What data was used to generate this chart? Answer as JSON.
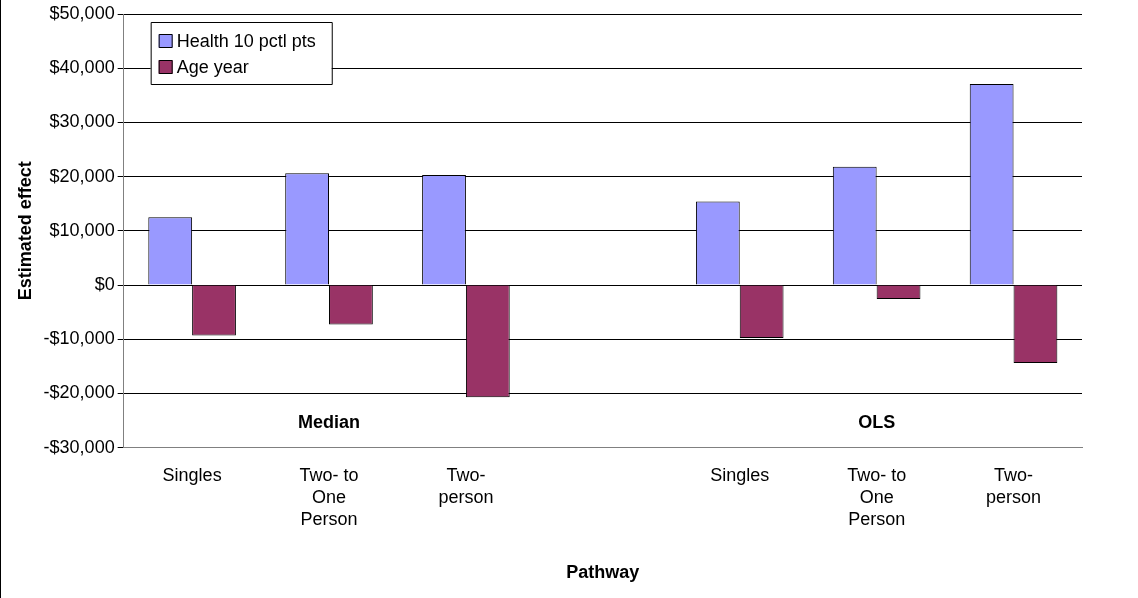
{
  "chart_data": {
    "type": "bar",
    "xlabel": "Pathway",
    "ylabel": "Estimated effect",
    "categories": [
      "Singles",
      "Two- to One Person",
      "Two-person",
      null,
      "Singles",
      "Two- to One Person",
      "Two-person"
    ],
    "series": [
      {
        "name": "Health 10 pctl pts",
        "color": "#9999ff",
        "values": [
          12500,
          20600,
          20300,
          null,
          15400,
          21800,
          37100
        ]
      },
      {
        "name": "Age year",
        "color": "#993366",
        "values": [
          -9300,
          -7300,
          -20700,
          null,
          -9800,
          -2600,
          -14400
        ]
      }
    ],
    "ylim": [
      -30000,
      50000
    ],
    "yticks": [
      {
        "value": -30000,
        "label": "-$30,000"
      },
      {
        "value": -20000,
        "label": "-$20,000"
      },
      {
        "value": -10000,
        "label": "-$10,000"
      },
      {
        "value": 0,
        "label": "$0"
      },
      {
        "value": 10000,
        "label": "$10,000"
      },
      {
        "value": 20000,
        "label": "$20,000"
      },
      {
        "value": 30000,
        "label": "$30,000"
      },
      {
        "value": 40000,
        "label": "$40,000"
      },
      {
        "value": 50000,
        "label": "$50,000"
      }
    ],
    "annotations": [
      "Median",
      "OLS"
    ],
    "grid": "y",
    "legend": "top left"
  }
}
